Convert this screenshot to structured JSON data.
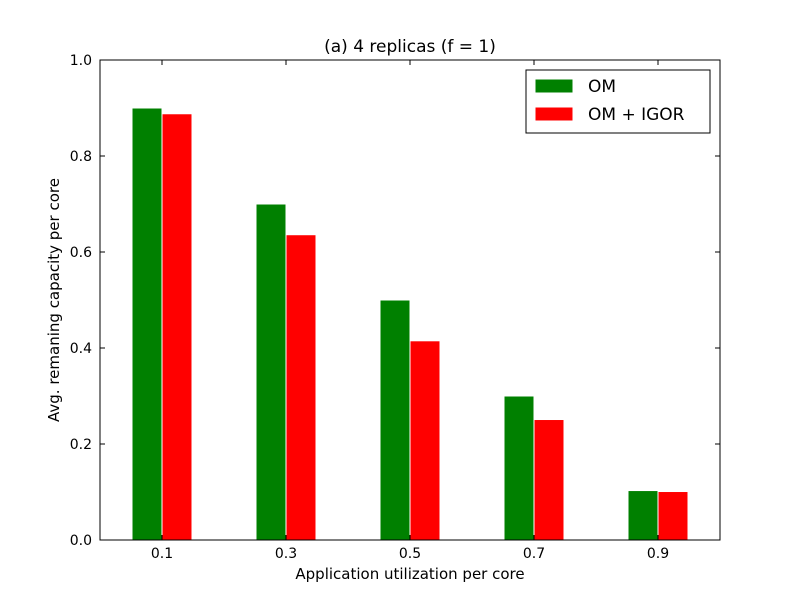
{
  "chart_data": {
    "type": "bar",
    "title": "(a) 4 replicas (f = 1)",
    "xlabel": "Application utilization per core",
    "ylabel": "Avg. remaning capacity per core",
    "categories": [
      "0.1",
      "0.3",
      "0.5",
      "0.7",
      "0.9"
    ],
    "series": [
      {
        "name": "OM",
        "color": "#008000",
        "values": [
          0.9,
          0.7,
          0.5,
          0.3,
          0.103
        ]
      },
      {
        "name": "OM + IGOR",
        "color": "#ff0000",
        "values": [
          0.888,
          0.636,
          0.415,
          0.251,
          0.101
        ]
      }
    ],
    "ylim": [
      0,
      1.0
    ],
    "yticks": [
      "0.0",
      "0.2",
      "0.4",
      "0.6",
      "0.8",
      "1.0"
    ],
    "grid": false,
    "legend_position": "top-right"
  }
}
